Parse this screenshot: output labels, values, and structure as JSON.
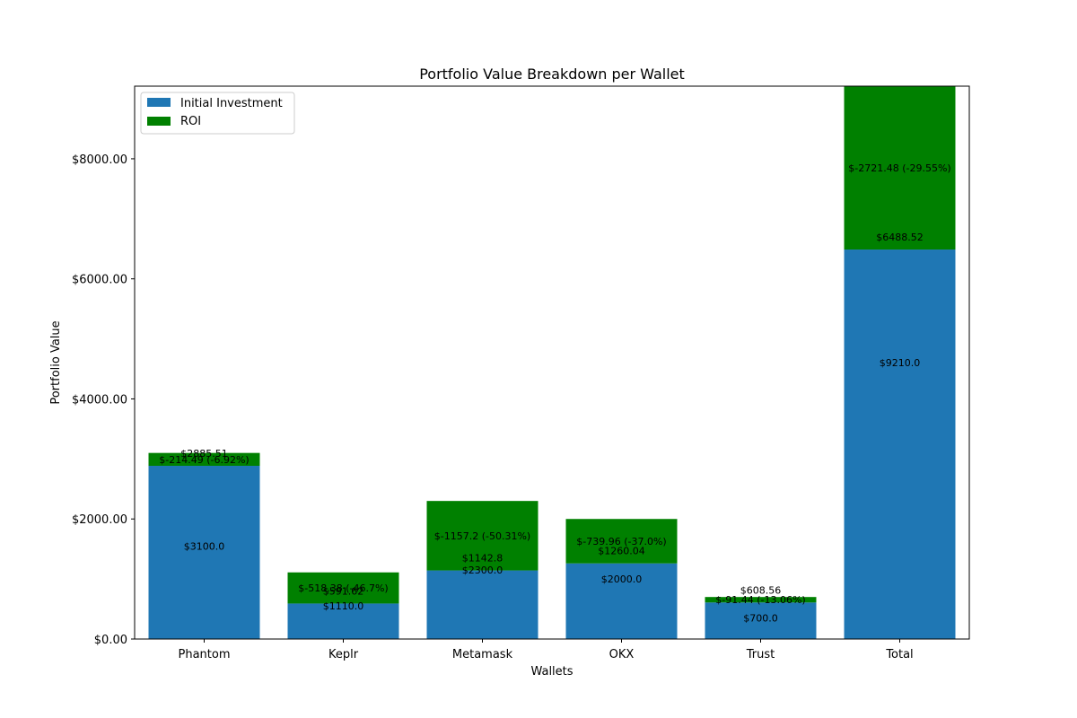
{
  "chart_data": {
    "type": "bar",
    "stacked": true,
    "title": "Portfolio Value Breakdown per Wallet",
    "xlabel": "Wallets",
    "ylabel": "Portfolio Value",
    "categories": [
      "Phantom",
      "Keplr",
      "Metamask",
      "OKX",
      "Trust",
      "Total"
    ],
    "ylim": [
      0,
      9210
    ],
    "yticks": [
      0,
      2000,
      4000,
      6000,
      8000
    ],
    "ytick_labels": [
      "$0.00",
      "$2000.00",
      "$4000.00",
      "$6000.00",
      "$8000.00"
    ],
    "legend_position": "top-left",
    "grid": false,
    "series": [
      {
        "name": "Initial Investment",
        "color": "#1f77b4",
        "values": [
          2885.51,
          591.62,
          1142.8,
          1260.04,
          608.56,
          6488.52
        ],
        "labels": [
          "$3100.0",
          "$1110.0",
          "$2300.0",
          "$2000.0",
          "$700.0",
          "$9210.0"
        ]
      },
      {
        "name": "ROI",
        "color": "#008000",
        "values": [
          214.49,
          518.38,
          1157.2,
          739.96,
          91.44,
          2721.48
        ],
        "labels": [
          "$-214.49 (-6.92%)",
          "$-518.38 (-46.7%)",
          "$-1157.2 (-50.31%)",
          "$-739.96 (-37.0%)",
          "$-91.44 (-13.06%)",
          "$-2721.48 (-29.55%)"
        ]
      }
    ],
    "current_value_labels": [
      "$2885.51",
      "$591.62",
      "$1142.8",
      "$1260.04",
      "$608.56",
      "$6488.52"
    ]
  }
}
